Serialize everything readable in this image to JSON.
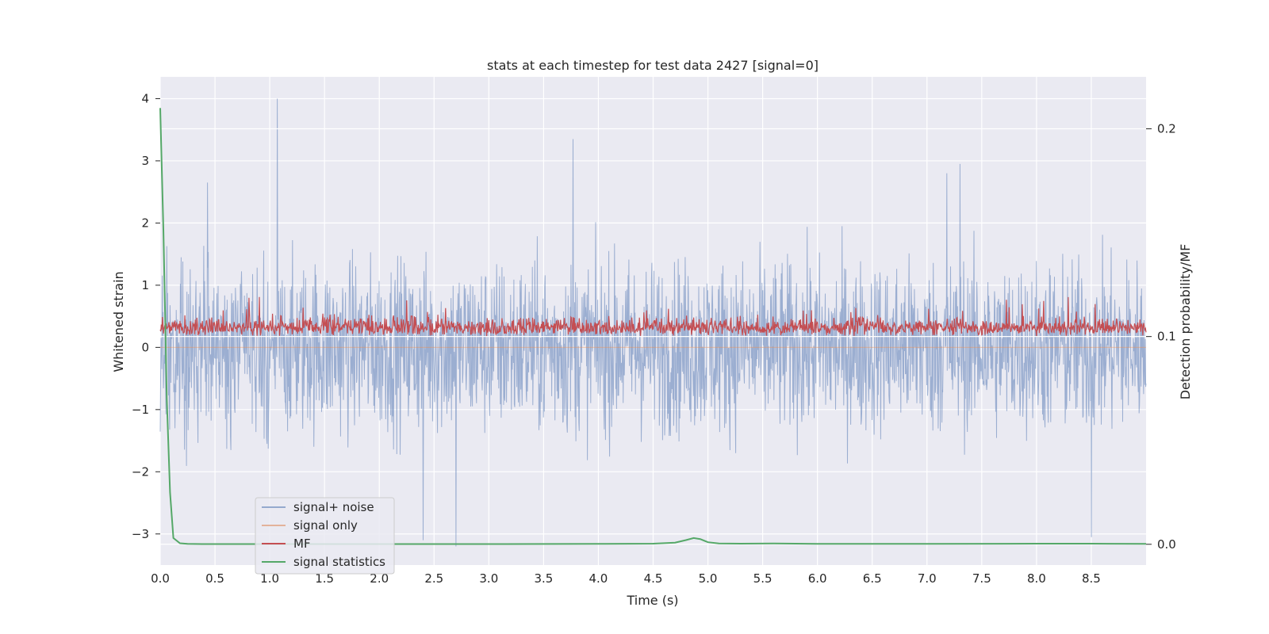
{
  "chart_data": {
    "type": "line",
    "title": "stats at each timestep for test data 2427 [signal=0]",
    "xlabel": "Time (s)",
    "ylabel": "Whitened strain",
    "y2label": "Detection probability/MF",
    "xlim": [
      0.0,
      9.0
    ],
    "ylim": [
      -3.5,
      4.35
    ],
    "y2lim": [
      -0.01,
      0.225
    ],
    "xticks": [
      "0.0",
      "0.5",
      "1.0",
      "1.5",
      "2.0",
      "2.5",
      "3.0",
      "3.5",
      "4.0",
      "4.5",
      "5.0",
      "5.5",
      "6.0",
      "6.5",
      "7.0",
      "7.5",
      "8.0",
      "8.5"
    ],
    "yticks": [
      "4",
      "3",
      "2",
      "1",
      "0",
      "−1",
      "−2",
      "−3"
    ],
    "y2ticks": [
      "0.2",
      "0.1",
      "0.0"
    ],
    "legend": {
      "placement": "lower-left",
      "entries": [
        {
          "label": "signal+ noise",
          "color": "#4c72b0"
        },
        {
          "label": "signal only",
          "color": "#dd8452"
        },
        {
          "label": "MF",
          "color": "#c44e52"
        },
        {
          "label": "signal statistics",
          "color": "#55a868"
        }
      ]
    },
    "series": [
      {
        "name": "signal+ noise",
        "axis": "left",
        "color": "#4c72b0",
        "description": "whitened strain noise, roughly symmetric around 0",
        "peaks": [
          {
            "x": 1.07,
            "y": 4.0
          },
          {
            "x": 3.77,
            "y": 3.35
          },
          {
            "x": 7.3,
            "y": 2.95
          },
          {
            "x": 7.18,
            "y": 2.8
          },
          {
            "x": 0.43,
            "y": 2.65
          },
          {
            "x": 2.7,
            "y": -3.2
          },
          {
            "x": 2.4,
            "y": -3.1
          },
          {
            "x": 8.5,
            "y": -3.05
          }
        ]
      },
      {
        "name": "signal only",
        "axis": "left",
        "color": "#dd8452",
        "description": "flat at zero (no signal present)"
      },
      {
        "name": "MF",
        "axis": "right",
        "color": "#c44e52",
        "description": "matched filter output, fluctuating between about 0.1 and 0.125"
      },
      {
        "name": "signal statistics",
        "axis": "right",
        "color": "#55a868",
        "x": [
          0.0,
          0.03,
          0.06,
          0.09,
          0.12,
          0.18,
          0.25,
          0.4,
          1.0,
          2.0,
          3.0,
          4.0,
          4.5,
          4.7,
          4.8,
          4.87,
          4.93,
          5.0,
          5.1,
          5.3,
          5.6,
          6.0,
          7.0,
          8.0,
          8.5,
          9.0
        ],
        "values": [
          0.21,
          0.15,
          0.07,
          0.025,
          0.003,
          0.0005,
          0.0002,
          0.0001,
          0.0001,
          0.0001,
          0.0001,
          0.0002,
          0.0003,
          0.0008,
          0.002,
          0.003,
          0.0025,
          0.001,
          0.0004,
          0.0003,
          0.0004,
          0.0002,
          0.0002,
          0.0003,
          0.0003,
          0.0002
        ]
      }
    ]
  }
}
